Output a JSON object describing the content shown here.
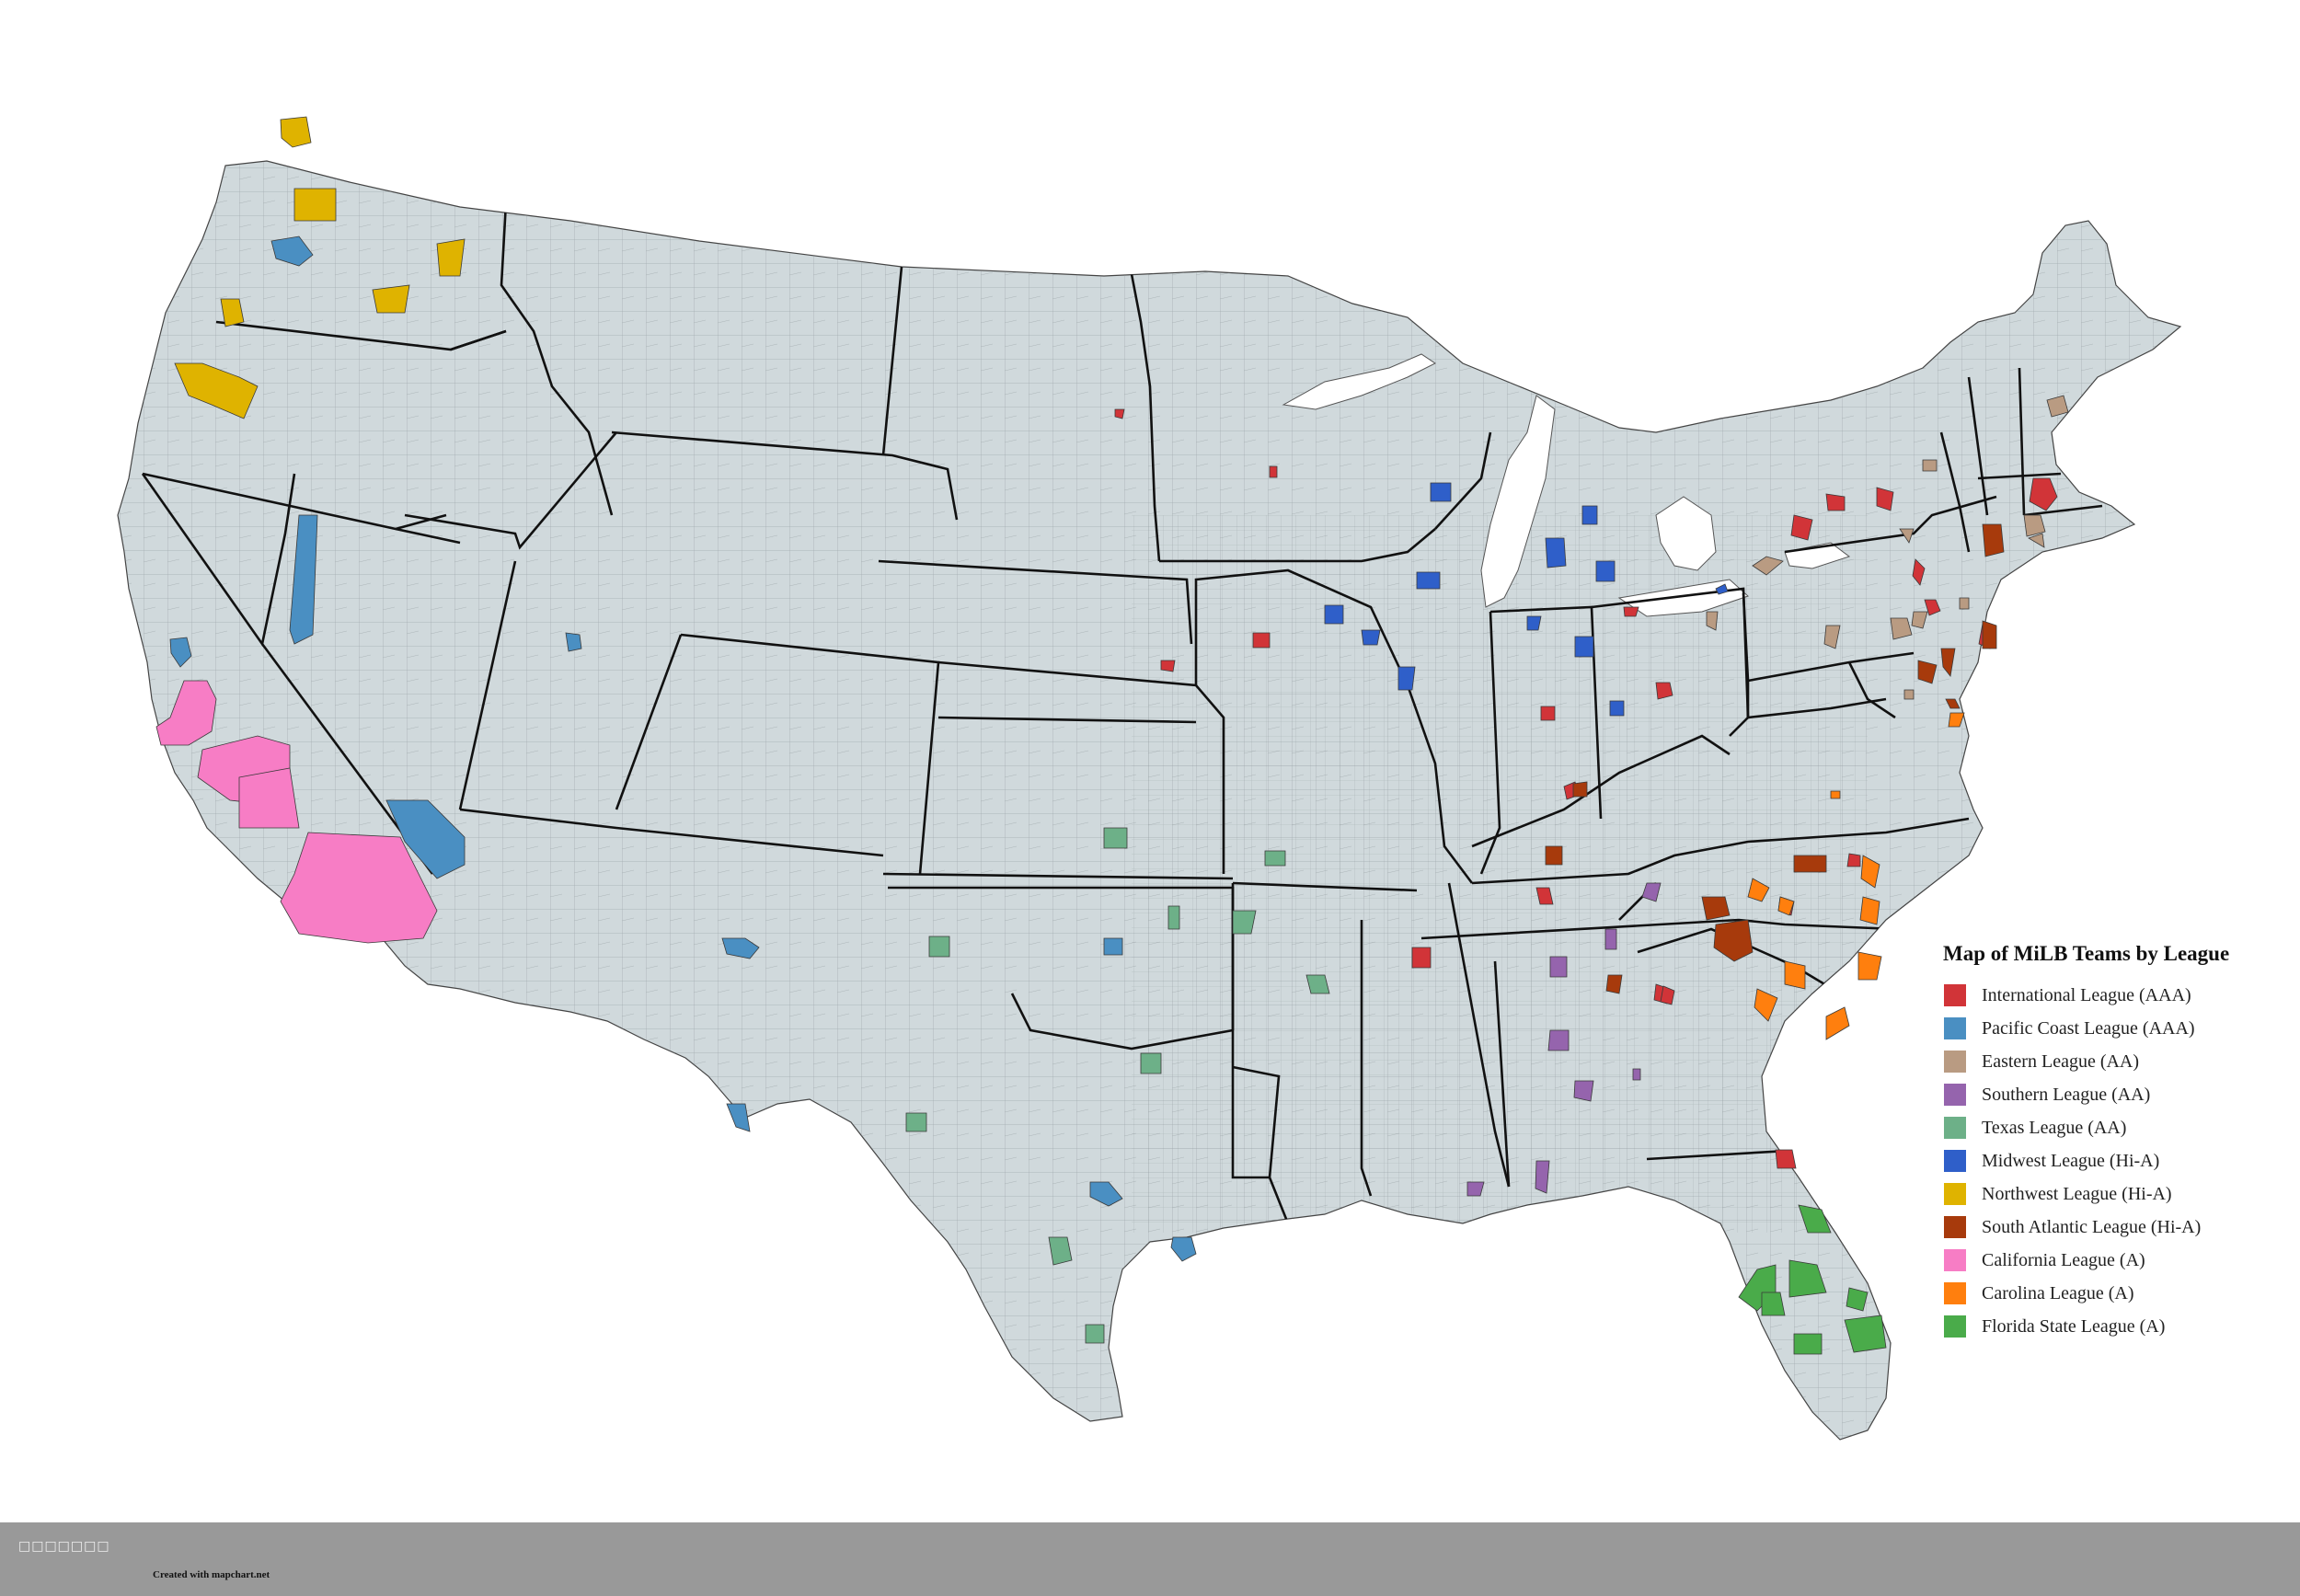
{
  "map": {
    "legend_title": "Map of MiLB Teams by League",
    "base_fill": "#d0d9dc",
    "state_border_color": "#111111",
    "county_line_color": "#7c8589",
    "legend": [
      {
        "label": "International League (AAA)",
        "color": "#d13438"
      },
      {
        "label": "Pacific Coast League (AAA)",
        "color": "#4a8fc2"
      },
      {
        "label": "Eastern League (AA)",
        "color": "#b99b82"
      },
      {
        "label": "Southern League (AA)",
        "color": "#9564ad"
      },
      {
        "label": "Texas League (AA)",
        "color": "#6db088"
      },
      {
        "label": "Midwest League (Hi-A)",
        "color": "#2f5fc9"
      },
      {
        "label": "Northwest League (Hi-A)",
        "color": "#dfb300"
      },
      {
        "label": "South Atlantic League (Hi-A)",
        "color": "#a73a0c"
      },
      {
        "label": "California League (A)",
        "color": "#f77dc5"
      },
      {
        "label": "Carolina League (A)",
        "color": "#ff7f0e"
      },
      {
        "label": "Florida State League (A)",
        "color": "#4aab4a"
      }
    ]
  },
  "footer": {
    "glyphs": "□□□□□□□",
    "credit": "Created with mapchart.net"
  }
}
